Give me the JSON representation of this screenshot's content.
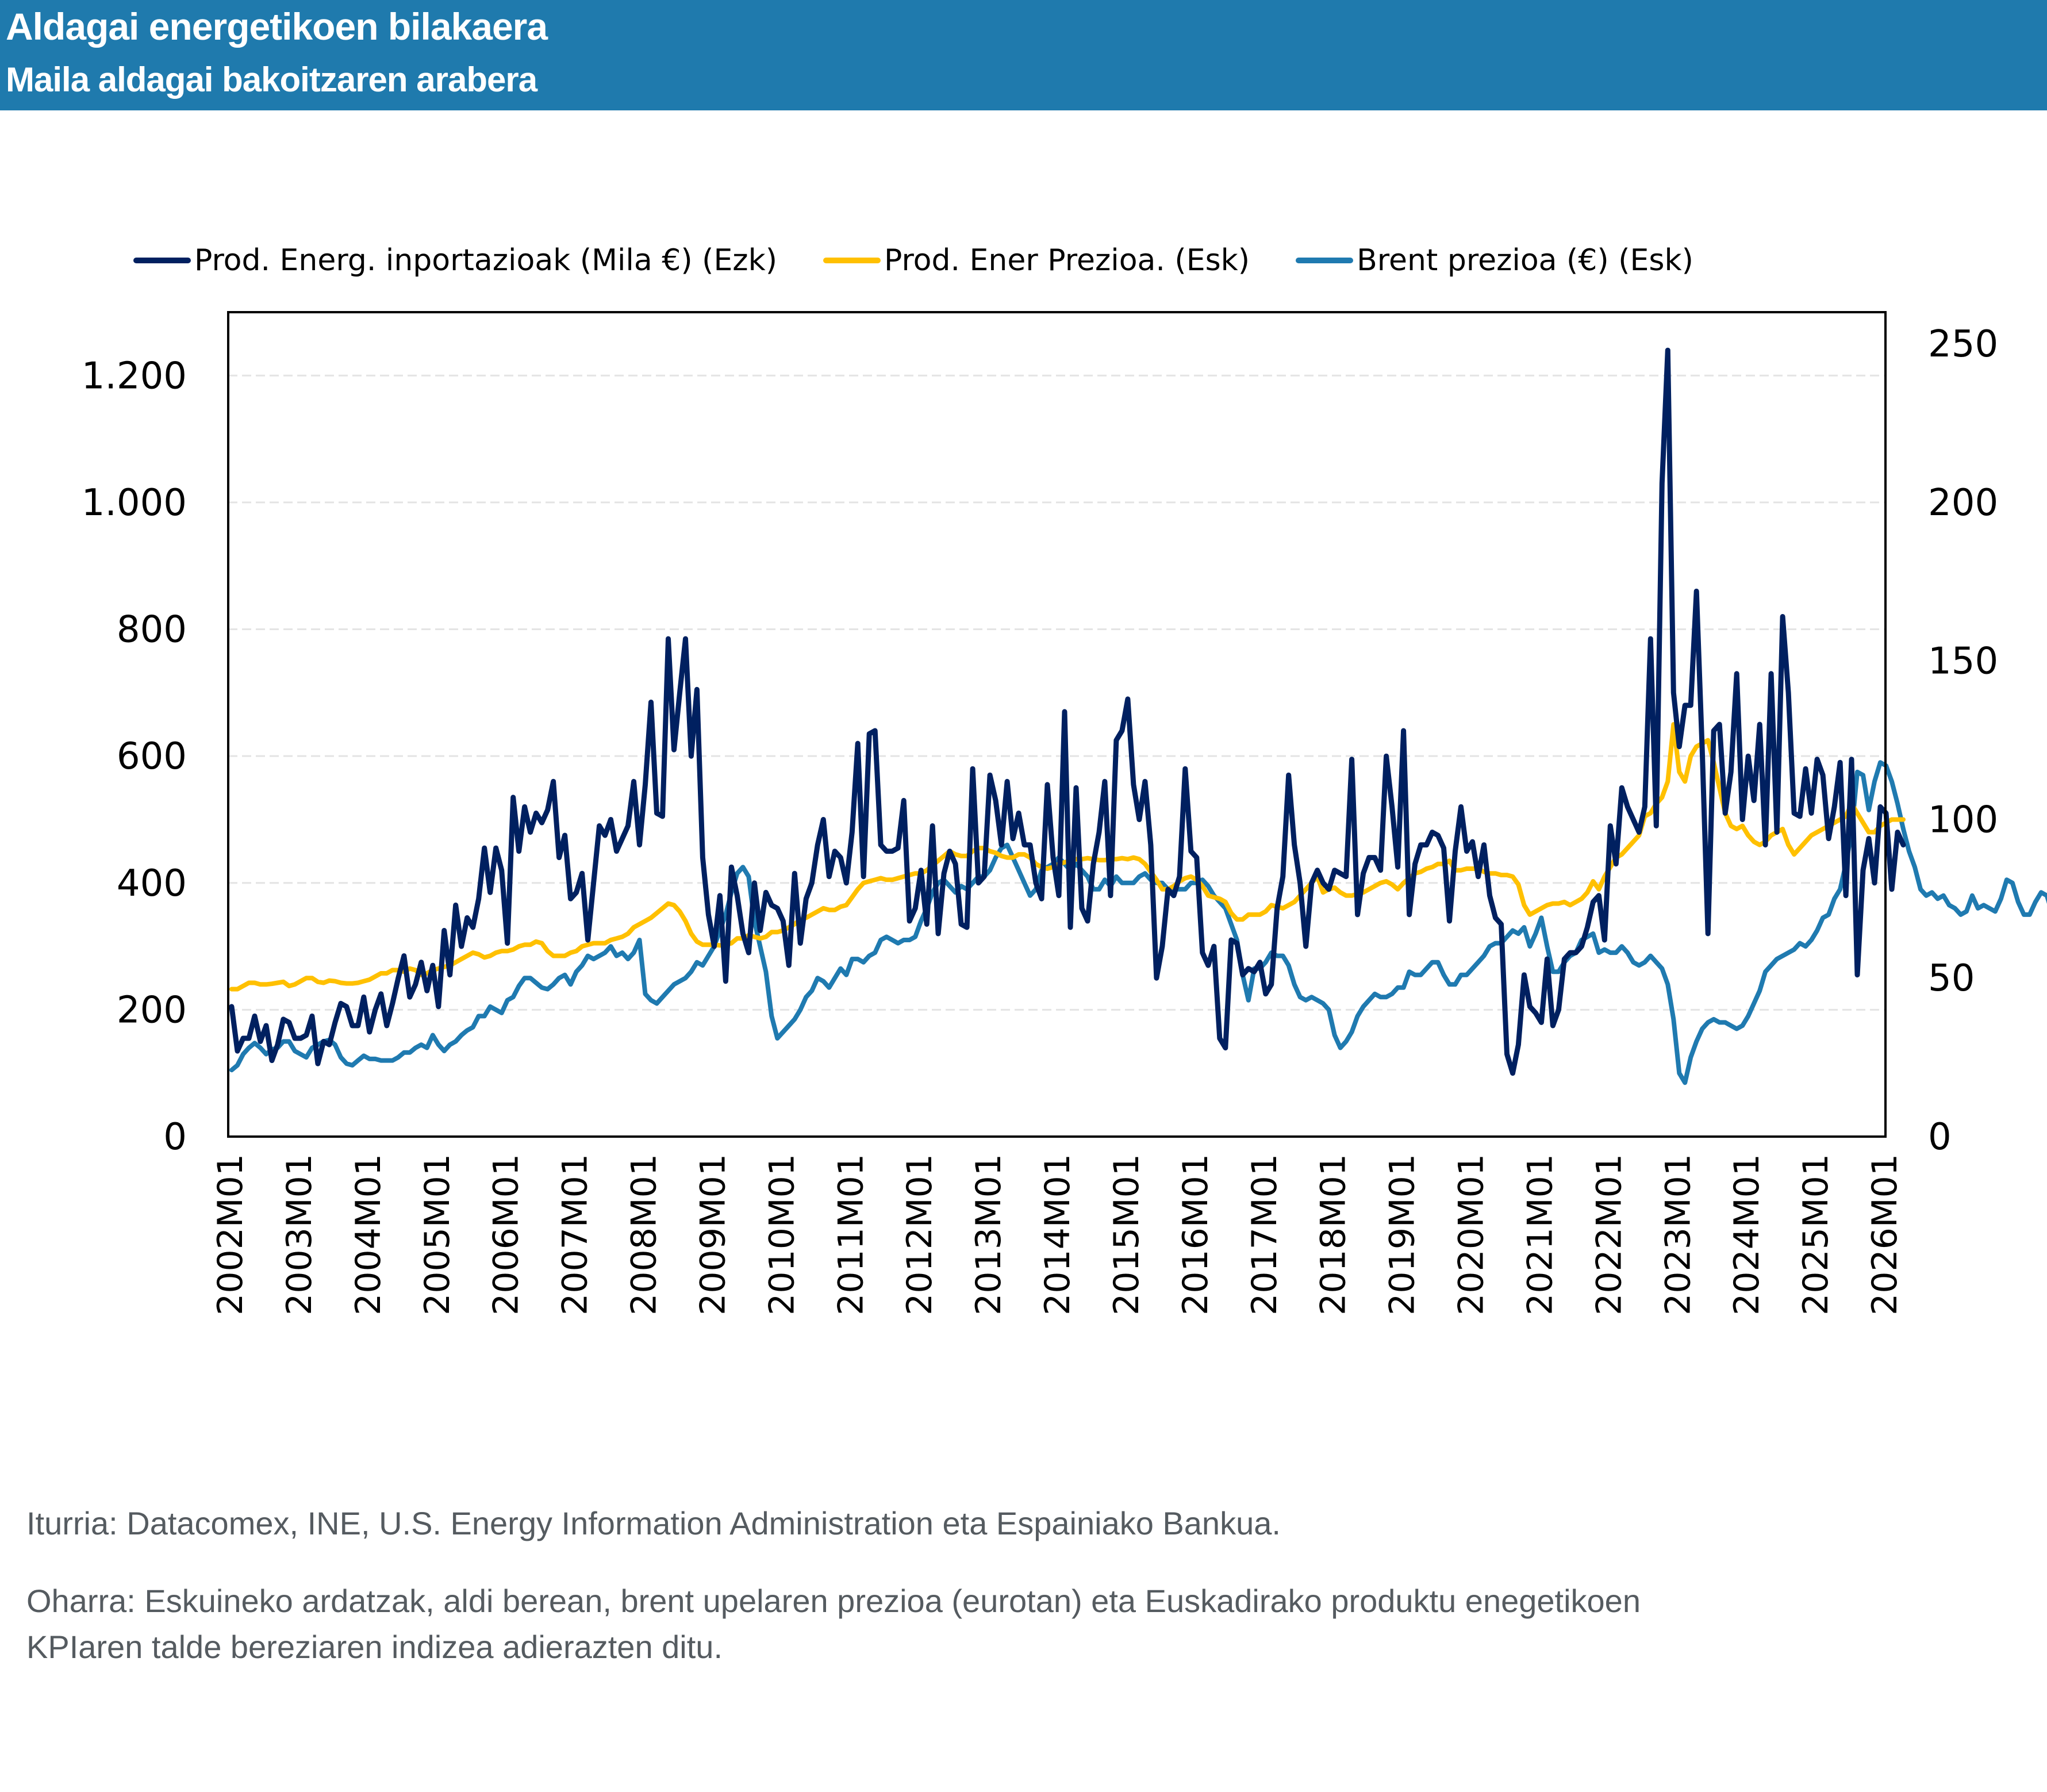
{
  "header": {
    "title": "Aldagai energetikoen bilakaera",
    "subtitle": "Maila aldagai bakoitzaren arabera",
    "background_color": "#1f7aad"
  },
  "footer": {
    "source": "Iturria: Datacomex, INE, U.S. Energy Information Administration eta Espainiako Bankua.",
    "note_line1": "Oharra: Eskuineko ardatzak, aldi berean, brent upelaren prezioa (eurotan) eta Euskadirako produktu enegetikoen",
    "note_line2": "KPIaren talde bereziaren indizea adierazten ditu."
  },
  "chart_data": {
    "type": "line",
    "title": "Aldagai energetikoen bilakaera",
    "subtitle": "Maila aldagai bakoitzaren arabera",
    "xlabel": "",
    "ylabel_left": "",
    "ylabel_right": "",
    "legend_position": "top",
    "grid": true,
    "x_start": "2002M01",
    "x_frequency": "monthly",
    "x_tick_labels": [
      "2002M01",
      "2003M01",
      "2004M01",
      "2005M01",
      "2006M01",
      "2007M01",
      "2008M01",
      "2009M01",
      "2010M01",
      "2011M01",
      "2012M01",
      "2013M01",
      "2014M01",
      "2015M01",
      "2016M01",
      "2017M01",
      "2018M01",
      "2019M01",
      "2020M01",
      "2021M01",
      "2022M01",
      "2023M01",
      "2024M01",
      "2025M01",
      "2026M01"
    ],
    "y_left": {
      "lim": [
        0,
        1300
      ],
      "ticks": [
        0,
        200,
        400,
        600,
        800,
        1000,
        1200
      ],
      "tick_labels": [
        "0",
        "200",
        "400",
        "600",
        "800",
        "1.000",
        "1.200"
      ]
    },
    "y_right": {
      "lim": [
        0,
        260
      ],
      "ticks": [
        0,
        50,
        100,
        150,
        200,
        250
      ],
      "tick_labels": [
        "0",
        "50",
        "100",
        "150",
        "200",
        "250"
      ]
    },
    "series": [
      {
        "name": "Prod. Energ. inportazioak (Mila €) (Ezk)",
        "axis": "left",
        "color": "#002060",
        "values": [
          205,
          135,
          155,
          155,
          190,
          150,
          175,
          120,
          145,
          185,
          180,
          155,
          155,
          160,
          190,
          115,
          150,
          145,
          180,
          210,
          205,
          175,
          175,
          220,
          165,
          200,
          225,
          175,
          210,
          250,
          285,
          220,
          240,
          275,
          230,
          270,
          205,
          325,
          255,
          365,
          300,
          345,
          330,
          375,
          455,
          385,
          455,
          420,
          305,
          535,
          450,
          520,
          480,
          510,
          495,
          515,
          560,
          440,
          475,
          375,
          385,
          415,
          310,
          400,
          490,
          475,
          500,
          450,
          470,
          490,
          560,
          460,
          555,
          685,
          510,
          505,
          785,
          610,
          700,
          785,
          600,
          705,
          440,
          350,
          300,
          380,
          245,
          425,
          380,
          320,
          290,
          400,
          325,
          385,
          365,
          360,
          340,
          270,
          415,
          305,
          375,
          400,
          460,
          500,
          410,
          450,
          440,
          400,
          480,
          620,
          410,
          635,
          640,
          460,
          450,
          450,
          455,
          530,
          340,
          360,
          420,
          335,
          490,
          320,
          415,
          450,
          430,
          335,
          330,
          580,
          400,
          410,
          570,
          530,
          460,
          560,
          470,
          510,
          460,
          460,
          400,
          375,
          555,
          440,
          380,
          670,
          330,
          550,
          360,
          340,
          430,
          480,
          560,
          380,
          625,
          640,
          690,
          555,
          500,
          560,
          460,
          250,
          300,
          390,
          380,
          410,
          580,
          450,
          440,
          290,
          270,
          300,
          155,
          140,
          310,
          305,
          255,
          265,
          260,
          275,
          225,
          240,
          360,
          410,
          570,
          460,
          400,
          300,
          400,
          420,
          400,
          390,
          420,
          415,
          410,
          595,
          350,
          415,
          440,
          440,
          420,
          600,
          520,
          425,
          640,
          350,
          430,
          460,
          460,
          480,
          475,
          455,
          340,
          450,
          520,
          450,
          465,
          410,
          460,
          380,
          345,
          335,
          130,
          100,
          145,
          255,
          205,
          195,
          180,
          280,
          175,
          200,
          280,
          290,
          290,
          300,
          330,
          370,
          380,
          310,
          490,
          430,
          550,
          520,
          500,
          480,
          520,
          785,
          490,
          1030,
          1240,
          700,
          615,
          680,
          680,
          860,
          610,
          320,
          640,
          650,
          510,
          575,
          730,
          500,
          600,
          530,
          650,
          460,
          730,
          480,
          820,
          700,
          510,
          505,
          580,
          510,
          595,
          570,
          470,
          520,
          590,
          380,
          595,
          255,
          420,
          470,
          400,
          520,
          510,
          390,
          480,
          460
        ]
      },
      {
        "name": "Prod. Ener Prezioa. (Esk)",
        "axis": "right",
        "color": "#ffc000",
        "values": [
          46.5,
          46.5,
          47.5,
          48.5,
          48.5,
          48,
          48,
          48.2,
          48.5,
          48.8,
          47.5,
          48,
          49,
          50,
          50,
          48.8,
          48.5,
          49.2,
          49,
          48.5,
          48.3,
          48.3,
          48.5,
          49,
          49.5,
          50.5,
          51.5,
          51.5,
          52.5,
          52.5,
          52,
          53,
          52.5,
          51,
          51.5,
          52.5,
          53,
          53.5,
          54,
          55,
          56,
          57,
          58,
          57.5,
          56.5,
          57,
          58,
          58.5,
          58.5,
          59,
          60,
          60.5,
          60.5,
          61.5,
          61,
          58.5,
          57,
          57,
          57,
          58,
          58.5,
          60,
          60.5,
          61,
          61,
          61,
          62,
          62.5,
          63,
          64,
          66,
          67,
          68,
          69,
          70.5,
          72,
          73.5,
          73,
          71,
          68,
          64,
          61.5,
          60.5,
          60.5,
          60.5,
          60.3,
          60.5,
          61,
          62.5,
          62.5,
          63.5,
          63,
          62.5,
          63,
          64.5,
          64.5,
          65,
          66,
          67,
          68.5,
          69,
          70,
          71,
          72,
          71.5,
          71.5,
          72.5,
          73,
          75.5,
          78,
          80,
          80.5,
          81,
          81.5,
          81,
          81,
          81.5,
          82,
          82.5,
          83,
          83,
          84,
          85.5,
          87,
          88.5,
          90,
          89,
          88.5,
          88.5,
          90,
          91,
          91,
          90,
          89.5,
          88.5,
          88,
          88,
          89,
          89,
          88,
          86,
          85,
          84.5,
          85,
          86,
          86.5,
          87,
          87.5,
          87.5,
          87.8,
          87.5,
          87.2,
          87.2,
          87.5,
          87.5,
          87.8,
          87.5,
          88,
          87.5,
          86,
          83.5,
          81,
          78,
          78,
          79,
          80.5,
          81.5,
          82,
          81,
          79,
          76,
          75.5,
          75,
          74,
          70.5,
          68.5,
          68.5,
          70,
          70,
          70,
          71,
          73,
          72.5,
          72,
          73,
          74,
          76,
          78,
          80,
          82,
          77,
          78,
          78.5,
          77,
          76,
          76,
          76.5,
          77,
          78,
          79,
          80,
          80.5,
          79.5,
          78,
          80,
          81.5,
          83,
          83.5,
          84.5,
          85,
          86,
          86,
          87,
          84,
          84,
          84.5,
          84.5,
          84.5,
          83.5,
          83,
          83,
          82.5,
          82.5,
          82,
          79.5,
          73,
          70,
          71,
          72,
          73,
          73.5,
          73.5,
          74,
          73,
          74,
          75,
          77,
          80.5,
          78,
          82,
          85,
          88,
          89,
          91,
          93,
          95,
          101,
          102,
          105,
          107,
          112,
          130,
          115,
          112,
          120,
          123,
          124,
          125,
          118,
          110,
          102,
          98,
          97,
          98,
          95,
          93,
          92,
          93,
          95,
          96,
          97,
          92,
          89,
          91,
          93,
          95,
          96,
          97,
          98,
          99,
          100,
          101,
          105,
          102,
          99,
          96,
          96,
          98,
          99,
          100,
          100,
          100
        ]
      },
      {
        "name": "Brent prezioa (€) (Esk)",
        "axis": "right",
        "color": "#1f7ab0",
        "values": [
          21,
          22.5,
          26,
          28,
          29.5,
          28,
          26,
          27.5,
          28,
          30,
          30,
          27,
          26,
          25,
          28,
          29,
          30,
          30.5,
          29,
          25,
          23,
          22.5,
          24,
          25.5,
          24.5,
          24.5,
          24,
          24,
          24,
          25,
          26.5,
          26.5,
          28,
          29,
          28,
          32,
          29,
          27,
          29,
          30,
          32,
          33.5,
          34.5,
          38,
          38,
          41,
          40,
          39,
          43,
          44,
          47.5,
          50,
          50,
          48.5,
          47,
          46.5,
          48,
          50,
          51,
          48,
          52,
          54,
          57,
          56,
          57,
          58,
          60,
          57,
          58,
          56,
          58,
          62,
          45,
          43,
          42,
          44,
          46,
          48,
          49,
          50,
          52,
          55,
          54,
          57,
          60,
          65,
          70,
          77,
          83,
          85,
          82,
          68,
          60,
          52,
          38,
          31,
          33,
          35,
          37,
          40,
          44,
          46,
          50,
          49,
          47,
          50,
          53,
          51,
          56,
          56,
          55,
          57,
          58,
          62,
          63,
          62,
          61,
          62,
          62,
          63,
          68,
          72,
          77,
          80,
          81,
          79,
          77,
          79,
          78,
          80,
          82,
          82,
          84,
          88,
          91,
          92,
          88,
          84,
          80,
          76,
          78,
          84,
          85,
          86,
          88,
          86,
          84,
          86,
          84,
          82,
          78,
          78,
          81,
          79,
          82,
          80,
          80,
          80,
          82,
          83,
          81,
          80,
          80,
          78,
          78,
          78,
          78,
          80,
          80,
          81,
          79,
          76,
          74,
          72,
          67,
          62,
          51,
          43,
          53,
          53,
          55,
          58,
          57,
          57,
          54,
          48,
          44,
          43,
          44,
          43,
          42,
          40,
          32,
          28,
          30,
          33,
          38,
          41,
          43,
          45,
          44,
          44,
          45,
          47,
          47,
          52,
          51,
          51,
          53,
          55,
          55,
          51,
          48,
          48,
          51,
          51,
          53,
          55,
          57,
          60,
          61,
          61,
          63,
          65,
          64,
          66,
          60,
          64,
          69,
          60,
          52,
          52,
          55,
          57,
          58,
          62,
          63,
          64,
          58,
          59,
          58,
          58,
          60,
          58,
          55,
          54,
          55,
          57,
          55,
          53,
          48,
          37,
          20,
          17,
          25,
          30,
          34,
          36,
          37,
          36,
          36,
          35,
          34,
          35,
          38,
          42,
          46,
          52,
          54,
          56,
          57,
          58,
          59,
          61,
          60,
          62,
          65,
          69,
          70,
          75,
          78,
          86,
          96,
          115,
          114,
          103,
          112,
          118,
          117,
          112,
          105,
          97,
          90,
          85,
          78,
          76,
          77,
          75,
          76,
          73,
          72,
          70,
          71,
          76,
          72,
          73,
          72,
          71,
          75,
          81,
          80,
          74,
          70,
          70,
          74,
          77,
          76,
          70,
          72,
          73,
          75,
          74,
          70,
          65,
          63,
          62,
          66,
          65,
          62,
          60,
          62,
          62,
          60,
          58,
          57,
          56,
          58
        ]
      }
    ]
  }
}
